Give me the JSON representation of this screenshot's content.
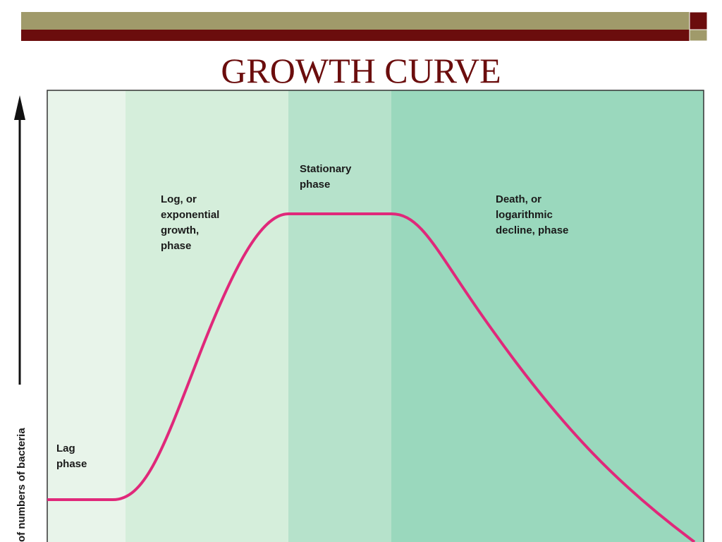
{
  "header": {
    "title": "GROWTH CURVE"
  },
  "diagram": {
    "y_axis_label": "of numbers of bacteria",
    "phases": [
      {
        "lines": [
          "Lag",
          "phase"
        ]
      },
      {
        "lines": [
          "Log, or",
          "exponential",
          "growth,",
          "phase"
        ]
      },
      {
        "lines": [
          "Stationary",
          "phase"
        ]
      },
      {
        "lines": [
          "Death, or",
          "logarithmic",
          "decline, phase"
        ]
      }
    ]
  }
}
